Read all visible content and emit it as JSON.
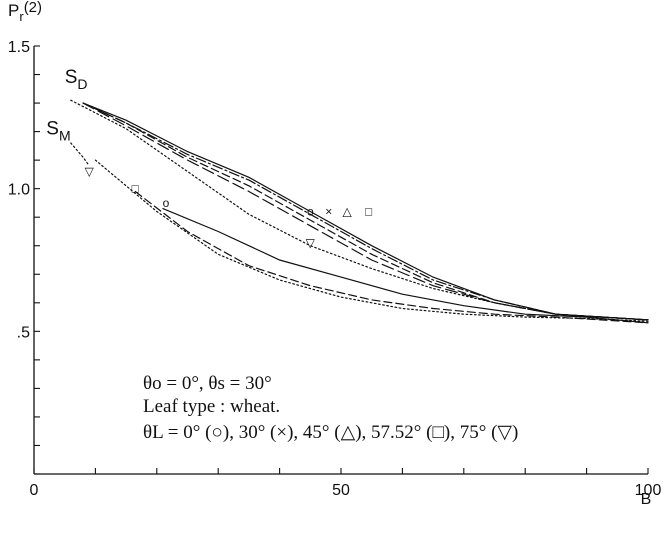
{
  "chart_data": {
    "type": "line",
    "ylabel": "Pr(2)",
    "ylabel_main": "P",
    "ylabel_sub": "r",
    "ylabel_suffix": "(2)",
    "xlabel": "B",
    "xlim": [
      0,
      100
    ],
    "ylim": [
      0,
      1.5
    ],
    "x_ticks": [
      0,
      50,
      100
    ],
    "x_tick_labels": [
      "0",
      "50",
      "100"
    ],
    "y_ticks": [
      0.5,
      1.0,
      1.5
    ],
    "y_tick_labels": [
      ".5",
      "1.0",
      "1.5"
    ],
    "grid": false,
    "legend": "none",
    "group_labels": [
      {
        "main": "S",
        "sub": "D",
        "x": 5,
        "y": 1.37
      },
      {
        "main": "S",
        "sub": "M",
        "x": 2,
        "y": 1.19
      }
    ],
    "markers": [
      {
        "glyph": "o",
        "x": 45,
        "y": 0.92
      },
      {
        "glyph": "×",
        "x": 48,
        "y": 0.92
      },
      {
        "glyph": "△",
        "x": 51,
        "y": 0.92
      },
      {
        "glyph": "□",
        "x": 54.5,
        "y": 0.92
      },
      {
        "glyph": "▽",
        "x": 45,
        "y": 0.81
      },
      {
        "glyph": "o",
        "x": 21.5,
        "y": 0.95
      },
      {
        "glyph": "□",
        "x": 16.5,
        "y": 1.0
      },
      {
        "glyph": "▽",
        "x": 9,
        "y": 1.06
      }
    ],
    "series": [
      {
        "group": "SD",
        "dash": "solid",
        "x": [
          8,
          15,
          25,
          35,
          45,
          55,
          65,
          75,
          85,
          100
        ],
        "y": [
          1.3,
          1.24,
          1.13,
          1.04,
          0.92,
          0.8,
          0.69,
          0.61,
          0.56,
          0.54
        ]
      },
      {
        "group": "SD",
        "dash": "dashdot",
        "x": [
          8,
          15,
          25,
          35,
          45,
          55,
          65,
          75,
          85,
          100
        ],
        "y": [
          1.3,
          1.23,
          1.12,
          1.03,
          0.91,
          0.79,
          0.68,
          0.61,
          0.56,
          0.54
        ]
      },
      {
        "group": "SD",
        "dash": "dash",
        "x": [
          8,
          15,
          25,
          35,
          45,
          55,
          65,
          75,
          85,
          100
        ],
        "y": [
          1.3,
          1.23,
          1.11,
          1.01,
          0.89,
          0.77,
          0.67,
          0.6,
          0.56,
          0.54
        ]
      },
      {
        "group": "SD",
        "dash": "longdash",
        "x": [
          8,
          15,
          25,
          35,
          45,
          55,
          65,
          75,
          85,
          100
        ],
        "y": [
          1.3,
          1.22,
          1.1,
          0.99,
          0.87,
          0.75,
          0.66,
          0.6,
          0.56,
          0.54
        ]
      },
      {
        "group": "SD",
        "dash": "dot",
        "x": [
          6,
          15,
          25,
          35,
          45,
          55,
          65,
          75,
          85,
          100
        ],
        "y": [
          1.31,
          1.21,
          1.06,
          0.91,
          0.8,
          0.72,
          0.65,
          0.6,
          0.56,
          0.54
        ]
      },
      {
        "group": "SM",
        "dash": "solid",
        "x": [
          21,
          30,
          40,
          50,
          60,
          70,
          80,
          90,
          100
        ],
        "y": [
          0.93,
          0.85,
          0.75,
          0.69,
          0.63,
          0.59,
          0.56,
          0.55,
          0.53
        ]
      },
      {
        "group": "SM",
        "dash": "dash",
        "x": [
          16.5,
          25,
          35,
          45,
          55,
          65,
          75,
          85,
          100
        ],
        "y": [
          0.99,
          0.85,
          0.73,
          0.66,
          0.61,
          0.58,
          0.56,
          0.55,
          0.53
        ]
      },
      {
        "group": "SM",
        "dash": "dot",
        "x": [
          10,
          20,
          30,
          40,
          50,
          60,
          70,
          80,
          90,
          100
        ],
        "y": [
          1.1,
          0.92,
          0.77,
          0.68,
          0.62,
          0.58,
          0.56,
          0.55,
          0.545,
          0.535
        ]
      },
      {
        "group": "SM",
        "dash": "dot",
        "x": [
          6,
          8,
          9
        ],
        "y": [
          1.16,
          1.11,
          1.08
        ]
      }
    ],
    "annotations": [
      "θo = 0°, θs = 30°",
      "Leaf type : wheat.",
      "θL = 0° (○), 30° (×), 45° (△), 57.52° (□), 75° (▽)"
    ]
  }
}
